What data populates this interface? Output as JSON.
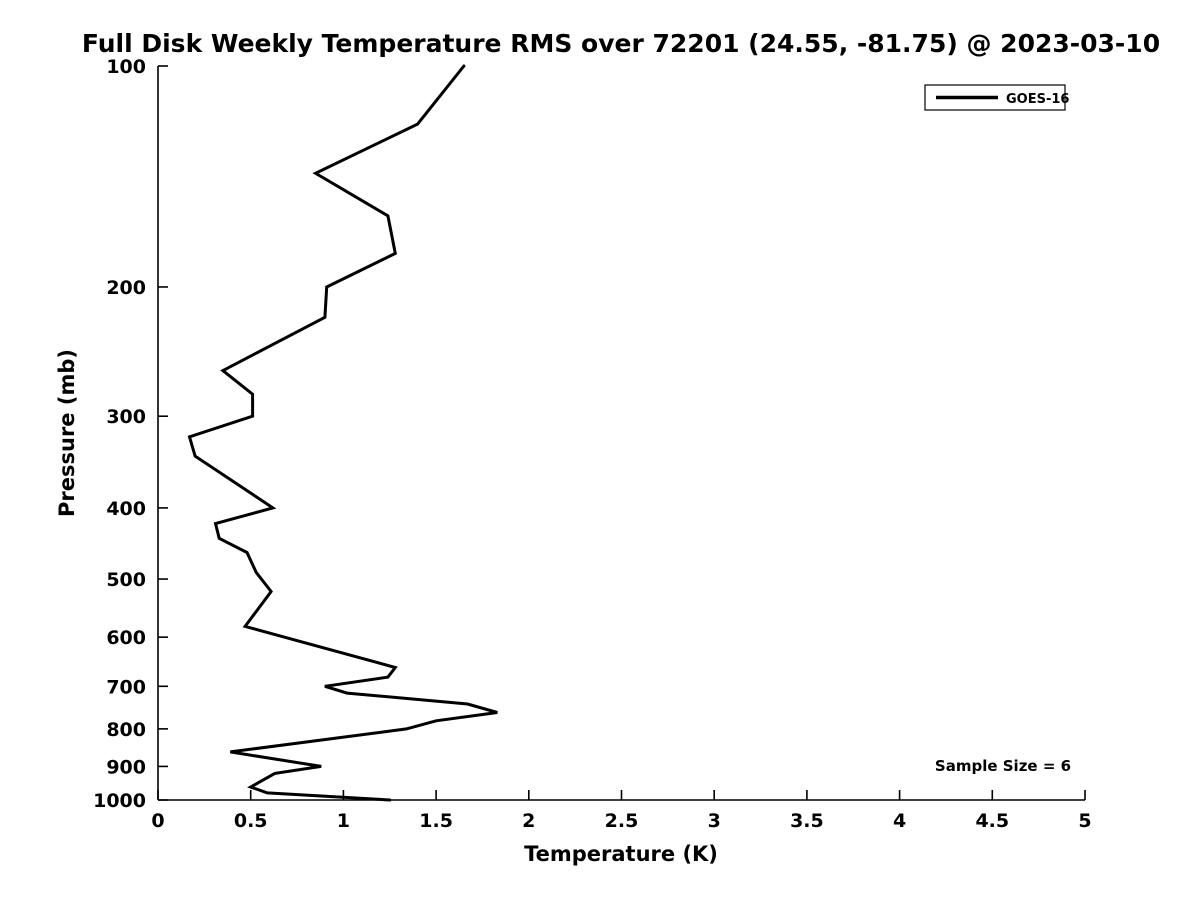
{
  "figure": {
    "background": "#ffffff",
    "foreground": "#000000"
  },
  "chart_data": {
    "type": "line",
    "title": "Full Disk Weekly Temperature RMS over 72201 (24.55, -81.75) @ 2023-03-10",
    "xlabel": "Temperature (K)",
    "ylabel": "Pressure (mb)",
    "grid": false,
    "x_axis": {
      "scale": "linear",
      "min": 0,
      "max": 5,
      "ticks": [
        0,
        0.5,
        1,
        1.5,
        2,
        2.5,
        3,
        3.5,
        4,
        4.5,
        5
      ]
    },
    "y_axis": {
      "scale": "log10",
      "inverted": true,
      "min": 100,
      "max": 1000,
      "ticks": [
        100,
        200,
        300,
        400,
        500,
        600,
        700,
        800,
        900,
        1000
      ]
    },
    "legend": {
      "position": "top-right",
      "entries": [
        {
          "label": "GOES-16",
          "color": "#000000",
          "line_width": 3.5
        }
      ]
    },
    "annotations": [
      {
        "text": "Sample Size = 6",
        "position": "lower-right"
      }
    ],
    "series": [
      {
        "name": "GOES-16",
        "color": "#000000",
        "line_width": 3,
        "points_temperature_pressure": [
          [
            1.65,
            100
          ],
          [
            1.4,
            120
          ],
          [
            0.85,
            140
          ],
          [
            1.24,
            160
          ],
          [
            1.28,
            180
          ],
          [
            0.91,
            200
          ],
          [
            0.9,
            220
          ],
          [
            0.35,
            260
          ],
          [
            0.51,
            280
          ],
          [
            0.51,
            300
          ],
          [
            0.17,
            320
          ],
          [
            0.2,
            340
          ],
          [
            0.62,
            400
          ],
          [
            0.31,
            420
          ],
          [
            0.33,
            440
          ],
          [
            0.48,
            460
          ],
          [
            0.53,
            490
          ],
          [
            0.61,
            520
          ],
          [
            0.47,
            580
          ],
          [
            1.28,
            660
          ],
          [
            1.24,
            680
          ],
          [
            0.9,
            700
          ],
          [
            1.02,
            715
          ],
          [
            1.67,
            740
          ],
          [
            1.83,
            760
          ],
          [
            1.5,
            780
          ],
          [
            1.34,
            800
          ],
          [
            0.39,
            860
          ],
          [
            0.88,
            900
          ],
          [
            0.63,
            920
          ],
          [
            0.5,
            960
          ],
          [
            0.59,
            978
          ],
          [
            1.25,
            1000
          ]
        ]
      }
    ]
  }
}
